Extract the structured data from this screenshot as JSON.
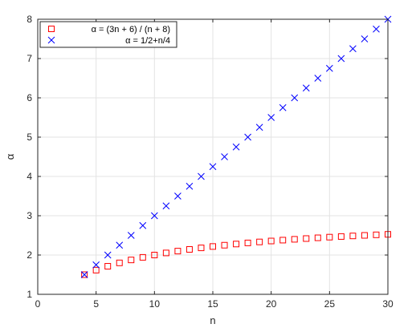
{
  "chart_data": {
    "type": "scatter",
    "xlabel": "n",
    "ylabel": "α",
    "xlim": [
      0,
      30
    ],
    "ylim": [
      1,
      8
    ],
    "xticks": [
      0,
      5,
      10,
      15,
      20,
      25,
      30
    ],
    "yticks": [
      1,
      2,
      3,
      4,
      5,
      6,
      7,
      8
    ],
    "grid": true,
    "legend_position": "top-left",
    "series": [
      {
        "name": "α = (3n + 6) / (n + 8)",
        "marker": "square",
        "color": "#ff0000",
        "x": [
          4,
          5,
          6,
          7,
          8,
          9,
          10,
          11,
          12,
          13,
          14,
          15,
          16,
          17,
          18,
          19,
          20,
          21,
          22,
          23,
          24,
          25,
          26,
          27,
          28,
          29,
          30
        ],
        "y": [
          1.5,
          1.615,
          1.714,
          1.8,
          1.875,
          1.941,
          2.0,
          2.053,
          2.1,
          2.143,
          2.182,
          2.217,
          2.25,
          2.28,
          2.308,
          2.333,
          2.357,
          2.379,
          2.4,
          2.419,
          2.438,
          2.455,
          2.471,
          2.486,
          2.5,
          2.514,
          2.526
        ]
      },
      {
        "name": "α = 1/2+n/4",
        "marker": "x",
        "color": "#0000ff",
        "x": [
          4,
          5,
          6,
          7,
          8,
          9,
          10,
          11,
          12,
          13,
          14,
          15,
          16,
          17,
          18,
          19,
          20,
          21,
          22,
          23,
          24,
          25,
          26,
          27,
          28,
          29,
          30
        ],
        "y": [
          1.5,
          1.75,
          2.0,
          2.25,
          2.5,
          2.75,
          3.0,
          3.25,
          3.5,
          3.75,
          4.0,
          4.25,
          4.5,
          4.75,
          5.0,
          5.25,
          5.5,
          5.75,
          6.0,
          6.25,
          6.5,
          6.75,
          7.0,
          7.25,
          7.5,
          7.75,
          8.0
        ]
      }
    ]
  }
}
